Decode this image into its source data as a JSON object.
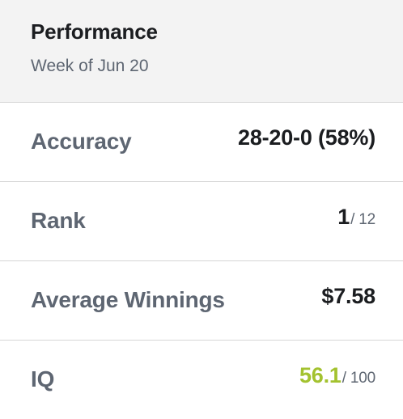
{
  "header": {
    "title": "Performance",
    "subtitle": "Week of Jun 20"
  },
  "rows": [
    {
      "label": "Accuracy",
      "value": "28-20-0 (58%)"
    },
    {
      "label": "Rank",
      "value": "1",
      "suffix": "/ 12"
    },
    {
      "label": "Average Winnings",
      "value": "$7.58"
    },
    {
      "label": "IQ",
      "value": "56.1",
      "suffix": "/ 100",
      "value_color": "#a3c22f"
    }
  ],
  "colors": {
    "header_bg": "#f3f3f3",
    "label": "#5e6672",
    "value": "#1b1d20",
    "accent": "#a3c22f",
    "divider": "#d6d6d6"
  }
}
